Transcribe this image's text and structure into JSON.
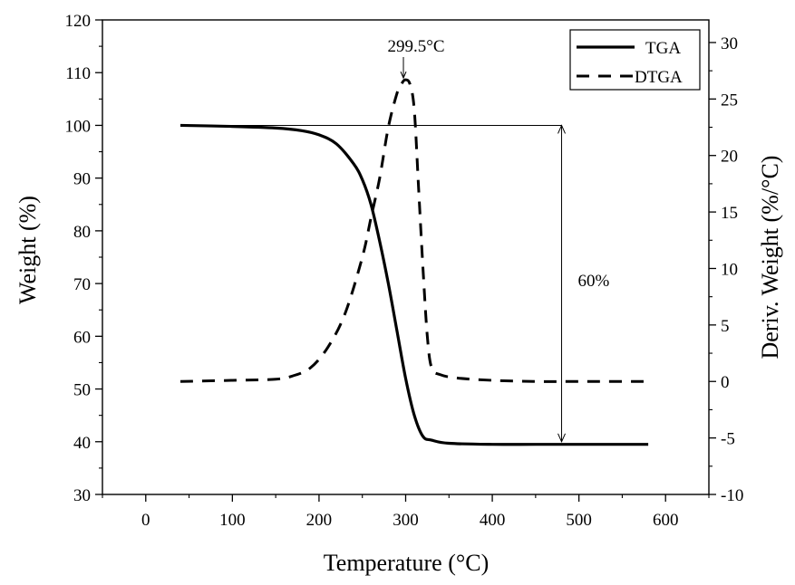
{
  "chart_data": {
    "type": "line",
    "xlabel": "Temperature (°C)",
    "ylabel_left": "Weight (%)",
    "ylabel_right": "Deriv. Weight (%/°C)",
    "xlim": [
      -50,
      650
    ],
    "ylim_left": [
      30,
      120
    ],
    "ylim_right": [
      -10,
      32
    ],
    "x_ticks": [
      0,
      100,
      200,
      300,
      400,
      500,
      600
    ],
    "y_ticks_left": [
      30,
      40,
      50,
      60,
      70,
      80,
      90,
      100,
      110,
      120
    ],
    "y_ticks_right": [
      -10,
      -5,
      0,
      5,
      10,
      15,
      20,
      25,
      30
    ],
    "legend": {
      "position": "top-right",
      "entries": [
        "TGA",
        "DTGA"
      ]
    },
    "series": [
      {
        "name": "TGA",
        "style": "solid",
        "axis": "left",
        "x": [
          40,
          100,
          150,
          180,
          200,
          220,
          240,
          250,
          260,
          270,
          280,
          290,
          300,
          310,
          320,
          330,
          350,
          400,
          450,
          500,
          580
        ],
        "values": [
          100,
          99.8,
          99.5,
          99,
          98.2,
          96.5,
          92.7,
          89.7,
          85,
          78,
          70,
          61,
          52,
          45,
          41,
          40.3,
          39.7,
          39.5,
          39.5,
          39.5,
          39.5
        ]
      },
      {
        "name": "DTGA",
        "style": "dashed",
        "axis": "right",
        "x": [
          40,
          100,
          150,
          170,
          190,
          210,
          230,
          250,
          260,
          270,
          280,
          290,
          295,
          299.5,
          305,
          310,
          315,
          320,
          325,
          330,
          340,
          360,
          400,
          450,
          500,
          580
        ],
        "values": [
          0,
          0.1,
          0.2,
          0.5,
          1.2,
          3,
          6,
          11,
          14.5,
          18,
          22.5,
          25.5,
          26.3,
          26.7,
          26.3,
          24,
          17,
          10,
          4,
          1.2,
          0.6,
          0.3,
          0.1,
          0,
          0,
          0
        ]
      }
    ],
    "annotations": [
      {
        "text": "299.5°C",
        "x": 299.5,
        "y": 26.7,
        "axis": "right"
      },
      {
        "text": "60%",
        "type": "weight-loss-span",
        "x": 480,
        "from": 100,
        "to": 40,
        "axis": "left"
      }
    ]
  }
}
